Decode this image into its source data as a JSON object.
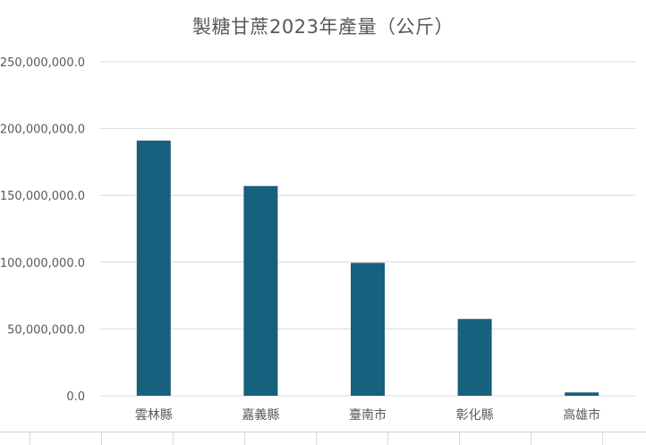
{
  "chart_data": {
    "type": "bar",
    "title": "製糖甘蔗2023年產量（公斤）",
    "xlabel": "",
    "ylabel": "",
    "categories": [
      "雲林縣",
      "嘉義縣",
      "臺南市",
      "彰化縣",
      "高雄市"
    ],
    "values": [
      191000000,
      157000000,
      99500000,
      57500000,
      2500000
    ],
    "ylim": [
      0,
      250000000
    ],
    "yticks": [
      0,
      50000000,
      100000000,
      150000000,
      200000000,
      250000000
    ],
    "ytick_labels": [
      "0.0",
      "50,000,000.0",
      "100,000,000.0",
      "150,000,000.0",
      "200,000,000.0",
      "250,000,000.0"
    ],
    "grid": true,
    "bar_color": "#17607e",
    "gridline_color": "#d9d9d9"
  }
}
